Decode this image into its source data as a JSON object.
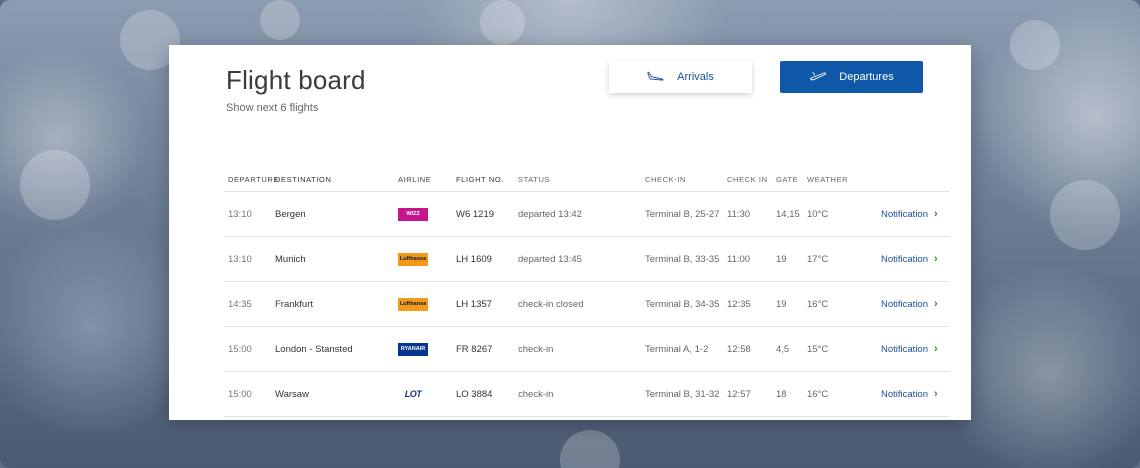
{
  "header": {
    "title": "Flight board",
    "subtitle": "Show next 6 flights"
  },
  "buttons": {
    "arrivals": "Arrivals",
    "departures": "Departures"
  },
  "columns": {
    "departure": "DEPARTURE",
    "destination": "DESTINATION",
    "airline": "AIRLINE",
    "flight_no": "FLIGHT NO.",
    "status": "STATUS",
    "checkin_desk": "CHECK-IN",
    "checkin_time": "CHECK IN",
    "gate": "GATE",
    "weather": "WEATHER"
  },
  "flights": [
    {
      "departure": "13:10",
      "destination": "Bergen",
      "airline_logo": "WIZZ",
      "airline_color": "#c6168d",
      "flight_no": "W6 1219",
      "status": "departed 13:42",
      "checkin_desk": "Terminal B, 25-27",
      "checkin_time": "11:30",
      "gate": "14,15",
      "weather": "10°C",
      "action": "Notification"
    },
    {
      "departure": "13:10",
      "destination": "Munich",
      "airline_logo": "Lufthansa",
      "airline_color": "#f39b18",
      "flight_no": "LH 1609",
      "status": "departed 13:45",
      "checkin_desk": "Terminal B, 33-35",
      "checkin_time": "11:00",
      "gate": "19",
      "weather": "17°C",
      "action": "Notification"
    },
    {
      "departure": "14:35",
      "destination": "Frankfurt",
      "airline_logo": "Lufthansa",
      "airline_color": "#f39b18",
      "flight_no": "LH 1357",
      "status": "check-in closed",
      "checkin_desk": "Terminal B, 34-35",
      "checkin_time": "12:35",
      "gate": "19",
      "weather": "16°C",
      "action": "Notification"
    },
    {
      "departure": "15:00",
      "destination": "London - Stansted",
      "airline_logo": "RYANAIR",
      "airline_color": "#073590",
      "flight_no": "FR 8267",
      "status": "check-in",
      "checkin_desk": "Terminal A, 1-2",
      "checkin_time": "12:58",
      "gate": "4,5",
      "weather": "15°C",
      "action": "Notification"
    },
    {
      "departure": "15:00",
      "destination": "Warsaw",
      "airline_logo": "LOT",
      "airline_color": "#11397a",
      "flight_no": "LO 3884",
      "status": "check-in",
      "checkin_desk": "Terminal B, 31-32",
      "checkin_time": "12:57",
      "gate": "18",
      "weather": "16°C",
      "action": "Notification"
    }
  ],
  "icons": {
    "arrivals": "plane-landing-icon",
    "departures": "plane-takeoff-icon",
    "row_action": "chevron-right-icon"
  },
  "colors": {
    "primary": "#0f57a8",
    "link": "#1d4f96",
    "chevron": "#3d8a3a"
  }
}
